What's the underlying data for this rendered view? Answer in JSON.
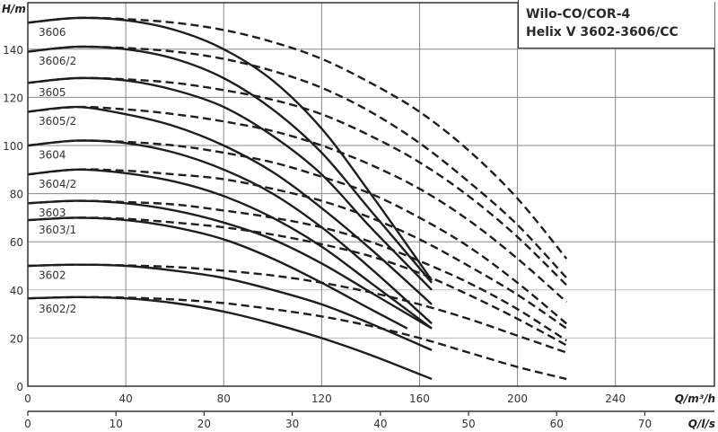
{
  "title": {
    "line1": "Wilo-CO/COR-4",
    "line2": "Helix V 3602-3606/CC"
  },
  "axes": {
    "y_label": "H/m",
    "x_label_primary": "Q/m³/h",
    "x_label_secondary": "Q/l/s",
    "y_ticks": [
      0,
      20,
      40,
      60,
      80,
      100,
      120,
      140
    ],
    "x_ticks_primary": [
      0,
      40,
      80,
      120,
      160,
      200,
      240
    ],
    "x_ticks_secondary": [
      0,
      10,
      20,
      30,
      40,
      50,
      60,
      70
    ]
  },
  "colors": {
    "curve": "#1e1e1e",
    "grid": "#888888",
    "grid_light": "#bbbbbb",
    "axis": "#333333"
  },
  "chart_data": {
    "type": "line",
    "title": "Wilo-CO/COR-4 Helix V 3602-3606/CC",
    "xlabel": "Q/m³/h",
    "xlabel_secondary": "Q/l/s",
    "ylabel": "H/m",
    "xlim": [
      0,
      280
    ],
    "ylim": [
      0,
      155
    ],
    "grid": true,
    "legend_position": "inline labels",
    "series": [
      {
        "name": "3606",
        "style": "solid",
        "x": [
          0,
          20,
          40,
          60,
          80,
          100,
          120,
          140,
          165
        ],
        "y": [
          151,
          153,
          152,
          148,
          140,
          127,
          107,
          80,
          44
        ]
      },
      {
        "name": "3606",
        "style": "dashed",
        "x": [
          0,
          20,
          40,
          60,
          80,
          100,
          120,
          140,
          160,
          180,
          200,
          220
        ],
        "y": [
          151,
          153,
          152.5,
          151,
          148,
          143,
          136,
          126,
          114,
          98,
          78,
          53
        ]
      },
      {
        "name": "3606/2",
        "style": "solid",
        "x": [
          0,
          20,
          40,
          60,
          80,
          100,
          120,
          140,
          165
        ],
        "y": [
          139,
          141,
          140,
          136,
          128,
          115,
          97,
          73,
          43
        ]
      },
      {
        "name": "3606/2",
        "style": "dashed",
        "x": [
          0,
          20,
          40,
          60,
          80,
          100,
          120,
          140,
          160,
          180,
          200,
          220
        ],
        "y": [
          139,
          141,
          140.5,
          139,
          136,
          131,
          124,
          114,
          101,
          85,
          67,
          45
        ]
      },
      {
        "name": "3605",
        "style": "solid",
        "x": [
          0,
          20,
          40,
          60,
          80,
          100,
          120,
          140,
          165
        ],
        "y": [
          126,
          128,
          127,
          123,
          116,
          104,
          88,
          66,
          40
        ]
      },
      {
        "name": "3605",
        "style": "dashed",
        "x": [
          0,
          20,
          40,
          60,
          80,
          100,
          120,
          140,
          160,
          180,
          200,
          220
        ],
        "y": [
          126,
          128,
          127.5,
          126,
          123,
          119,
          113,
          104,
          93,
          79,
          62,
          42
        ]
      },
      {
        "name": "3605/2",
        "style": "solid",
        "x": [
          0,
          20,
          40,
          60,
          80,
          100,
          120,
          140,
          165
        ],
        "y": [
          114,
          116,
          113,
          108,
          100,
          89,
          74,
          57,
          34
        ]
      },
      {
        "name": "3605/2",
        "style": "dashed",
        "x": [
          0,
          20,
          40,
          60,
          80,
          100,
          120,
          140,
          160,
          180,
          200,
          220
        ],
        "y": [
          114,
          116,
          115,
          113,
          110,
          106,
          100,
          92,
          82,
          69,
          53,
          35
        ]
      },
      {
        "name": "3604",
        "style": "solid",
        "x": [
          0,
          20,
          40,
          60,
          80,
          100,
          120,
          140,
          165
        ],
        "y": [
          100,
          102,
          101,
          97,
          90,
          80,
          66,
          49,
          26
        ]
      },
      {
        "name": "3604",
        "style": "dashed",
        "x": [
          0,
          20,
          40,
          60,
          80,
          100,
          120,
          140,
          160,
          180,
          200,
          220
        ],
        "y": [
          100,
          102,
          101.5,
          100,
          97,
          93,
          87,
          80,
          70,
          58,
          43,
          26
        ]
      },
      {
        "name": "3604/2",
        "style": "solid",
        "x": [
          0,
          20,
          40,
          60,
          80,
          100,
          120,
          140,
          165
        ],
        "y": [
          88,
          90,
          88.5,
          85,
          79,
          70,
          58,
          43,
          24
        ]
      },
      {
        "name": "3604/2",
        "style": "dashed",
        "x": [
          0,
          20,
          40,
          60,
          80,
          100,
          120,
          140,
          160,
          180,
          200,
          220
        ],
        "y": [
          88,
          90,
          89.5,
          88,
          86,
          82,
          77,
          70,
          61,
          50,
          38,
          24
        ]
      },
      {
        "name": "3603",
        "style": "solid",
        "x": [
          0,
          20,
          40,
          60,
          80,
          100,
          120,
          140,
          165
        ],
        "y": [
          76,
          77,
          76,
          73,
          68,
          61,
          51,
          39,
          24
        ]
      },
      {
        "name": "3603",
        "style": "dashed",
        "x": [
          0,
          20,
          40,
          60,
          80,
          100,
          120,
          140,
          160,
          180,
          200,
          220
        ],
        "y": [
          76,
          77,
          76.5,
          75.5,
          73,
          70,
          66,
          60,
          52,
          43,
          32,
          19
        ]
      },
      {
        "name": "3603/1",
        "style": "solid",
        "x": [
          0,
          20,
          40,
          60,
          80,
          100,
          120,
          140,
          155
        ],
        "y": [
          69,
          70,
          69,
          66,
          61,
          53,
          43,
          32,
          24
        ]
      },
      {
        "name": "3603/1",
        "style": "dashed",
        "x": [
          0,
          20,
          40,
          60,
          80,
          100,
          120,
          140,
          160,
          180,
          200,
          220
        ],
        "y": [
          69,
          70,
          69.5,
          68,
          66,
          63,
          59,
          54,
          47,
          38,
          28,
          17
        ]
      },
      {
        "name": "3602",
        "style": "solid",
        "x": [
          0,
          20,
          40,
          60,
          80,
          100,
          120,
          140,
          165
        ],
        "y": [
          50,
          50.5,
          50,
          48,
          45,
          40,
          34,
          26,
          15
        ]
      },
      {
        "name": "3602",
        "style": "dashed",
        "x": [
          0,
          20,
          40,
          60,
          80,
          100,
          120,
          140,
          160,
          180,
          200,
          220
        ],
        "y": [
          50,
          50.5,
          50.2,
          49.5,
          48,
          46,
          43,
          39,
          34,
          28,
          21,
          14
        ]
      },
      {
        "name": "3602/2",
        "style": "solid",
        "x": [
          0,
          20,
          40,
          60,
          80,
          100,
          120,
          140,
          165
        ],
        "y": [
          36.5,
          37,
          36.5,
          34.5,
          31,
          26,
          20,
          13,
          3
        ]
      },
      {
        "name": "3602/2",
        "style": "dashed",
        "x": [
          0,
          20,
          40,
          60,
          80,
          100,
          120,
          140,
          160,
          180,
          200,
          220
        ],
        "y": [
          36.5,
          37,
          36.8,
          36,
          34.5,
          32,
          29,
          25,
          20,
          14,
          8,
          3
        ]
      }
    ]
  },
  "curve_labels": [
    {
      "text": "3606",
      "H": 147
    },
    {
      "text": "3606/2",
      "H": 135
    },
    {
      "text": "3605",
      "H": 122
    },
    {
      "text": "3605/2",
      "H": 110
    },
    {
      "text": "3604",
      "H": 96
    },
    {
      "text": "3604/2",
      "H": 84
    },
    {
      "text": "3603",
      "H": 72
    },
    {
      "text": "3603/1",
      "H": 65
    },
    {
      "text": "3602",
      "H": 46
    },
    {
      "text": "3602/2",
      "H": 32
    }
  ]
}
